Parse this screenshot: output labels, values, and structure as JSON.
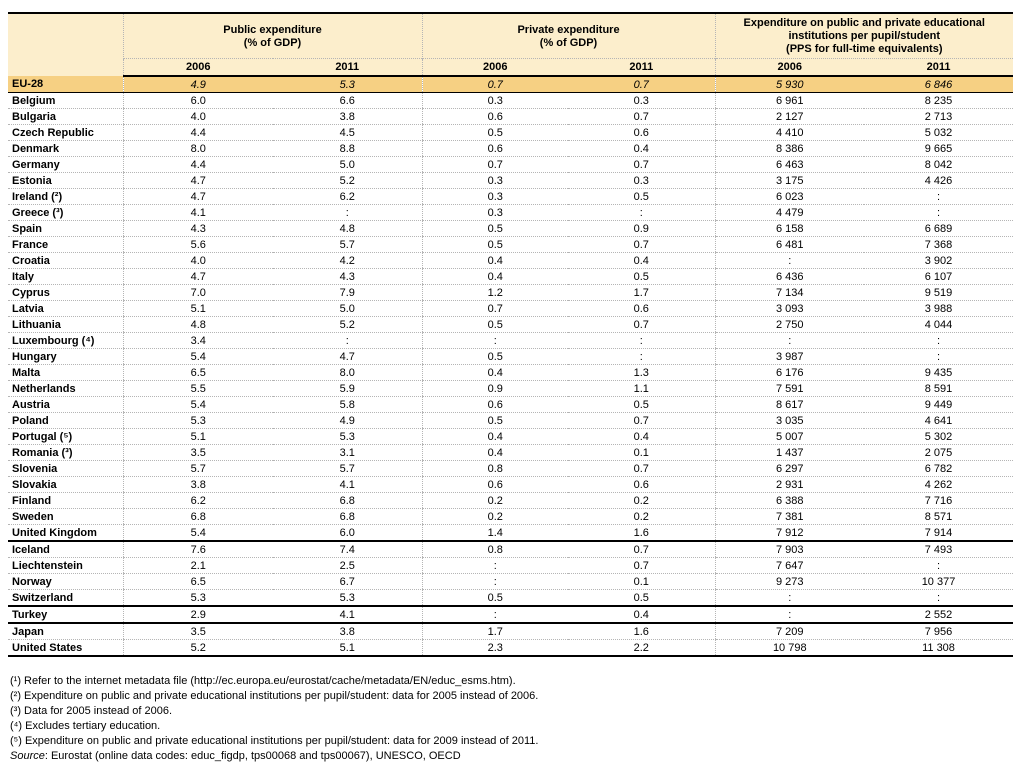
{
  "table": {
    "column_groups": [
      {
        "lines": [
          "Public expenditure",
          "(% of GDP)",
          ""
        ]
      },
      {
        "lines": [
          "Private expenditure",
          "(% of GDP)",
          ""
        ]
      },
      {
        "lines": [
          "Expenditure on public and private educational",
          "institutions per pupil/student",
          "(PPS for full-time equivalents)"
        ]
      }
    ],
    "year_headers": [
      "2006",
      "2011",
      "2006",
      "2011",
      "2006",
      "2011"
    ],
    "missing_value_symbol": ":",
    "colors": {
      "header_bg": "#FCEECC",
      "eu_row_bg": "#F6D083",
      "grid_dotted": "#B5B5B5",
      "section_border": "#000000"
    },
    "rows": [
      {
        "label": "EU-28",
        "style": "eu",
        "values": [
          "4.9",
          "5.3",
          "0.7",
          "0.7",
          "5 930",
          "6 846"
        ]
      },
      {
        "label": "Belgium",
        "values": [
          "6.0",
          "6.6",
          "0.3",
          "0.3",
          "6 961",
          "8 235"
        ]
      },
      {
        "label": "Bulgaria",
        "values": [
          "4.0",
          "3.8",
          "0.6",
          "0.7",
          "2 127",
          "2 713"
        ]
      },
      {
        "label": "Czech Republic",
        "values": [
          "4.4",
          "4.5",
          "0.5",
          "0.6",
          "4 410",
          "5 032"
        ]
      },
      {
        "label": "Denmark",
        "values": [
          "8.0",
          "8.8",
          "0.6",
          "0.4",
          "8 386",
          "9 665"
        ]
      },
      {
        "label": "Germany",
        "values": [
          "4.4",
          "5.0",
          "0.7",
          "0.7",
          "6 463",
          "8 042"
        ]
      },
      {
        "label": "Estonia",
        "values": [
          "4.7",
          "5.2",
          "0.3",
          "0.3",
          "3 175",
          "4 426"
        ]
      },
      {
        "label": "Ireland (²)",
        "values": [
          "4.7",
          "6.2",
          "0.3",
          "0.5",
          "6 023",
          ":"
        ]
      },
      {
        "label": "Greece (³)",
        "values": [
          "4.1",
          ":",
          "0.3",
          ":",
          "4 479",
          ":"
        ]
      },
      {
        "label": "Spain",
        "values": [
          "4.3",
          "4.8",
          "0.5",
          "0.9",
          "6 158",
          "6 689"
        ]
      },
      {
        "label": "France",
        "values": [
          "5.6",
          "5.7",
          "0.5",
          "0.7",
          "6 481",
          "7 368"
        ]
      },
      {
        "label": "Croatia",
        "values": [
          "4.0",
          "4.2",
          "0.4",
          "0.4",
          ":",
          "3 902"
        ]
      },
      {
        "label": "Italy",
        "values": [
          "4.7",
          "4.3",
          "0.4",
          "0.5",
          "6 436",
          "6 107"
        ]
      },
      {
        "label": "Cyprus",
        "values": [
          "7.0",
          "7.9",
          "1.2",
          "1.7",
          "7 134",
          "9 519"
        ]
      },
      {
        "label": "Latvia",
        "values": [
          "5.1",
          "5.0",
          "0.7",
          "0.6",
          "3 093",
          "3 988"
        ]
      },
      {
        "label": "Lithuania",
        "values": [
          "4.8",
          "5.2",
          "0.5",
          "0.7",
          "2 750",
          "4 044"
        ]
      },
      {
        "label": "Luxembourg (⁴)",
        "values": [
          "3.4",
          ":",
          ":",
          ":",
          ":",
          ":"
        ]
      },
      {
        "label": "Hungary",
        "values": [
          "5.4",
          "4.7",
          "0.5",
          ":",
          "3 987",
          ":"
        ]
      },
      {
        "label": "Malta",
        "values": [
          "6.5",
          "8.0",
          "0.4",
          "1.3",
          "6 176",
          "9 435"
        ]
      },
      {
        "label": "Netherlands",
        "values": [
          "5.5",
          "5.9",
          "0.9",
          "1.1",
          "7 591",
          "8 591"
        ]
      },
      {
        "label": "Austria",
        "values": [
          "5.4",
          "5.8",
          "0.6",
          "0.5",
          "8 617",
          "9 449"
        ]
      },
      {
        "label": "Poland",
        "values": [
          "5.3",
          "4.9",
          "0.5",
          "0.7",
          "3 035",
          "4 641"
        ]
      },
      {
        "label": "Portugal (⁵)",
        "values": [
          "5.1",
          "5.3",
          "0.4",
          "0.4",
          "5 007",
          "5 302"
        ]
      },
      {
        "label": "Romania (³)",
        "values": [
          "3.5",
          "3.1",
          "0.4",
          "0.1",
          "1 437",
          "2 075"
        ]
      },
      {
        "label": "Slovenia",
        "values": [
          "5.7",
          "5.7",
          "0.8",
          "0.7",
          "6 297",
          "6 782"
        ]
      },
      {
        "label": "Slovakia",
        "values": [
          "3.8",
          "4.1",
          "0.6",
          "0.6",
          "2 931",
          "4 262"
        ]
      },
      {
        "label": "Finland",
        "values": [
          "6.2",
          "6.8",
          "0.2",
          "0.2",
          "6 388",
          "7 716"
        ]
      },
      {
        "label": "Sweden",
        "values": [
          "6.8",
          "6.8",
          "0.2",
          "0.2",
          "7 381",
          "8 571"
        ]
      },
      {
        "label": "United Kingdom",
        "values": [
          "5.4",
          "6.0",
          "1.4",
          "1.6",
          "7 912",
          "7 914"
        ]
      },
      {
        "label": "Iceland",
        "sep_before": true,
        "values": [
          "7.6",
          "7.4",
          "0.8",
          "0.7",
          "7 903",
          "7 493"
        ]
      },
      {
        "label": "Liechtenstein",
        "values": [
          "2.1",
          "2.5",
          ":",
          "0.7",
          "7 647",
          ":"
        ]
      },
      {
        "label": "Norway",
        "values": [
          "6.5",
          "6.7",
          ":",
          "0.1",
          "9 273",
          "10 377"
        ]
      },
      {
        "label": "Switzerland",
        "values": [
          "5.3",
          "5.3",
          "0.5",
          "0.5",
          ":",
          ":"
        ]
      },
      {
        "label": "Turkey",
        "sep_before": true,
        "values": [
          "2.9",
          "4.1",
          ":",
          "0.4",
          ":",
          "2 552"
        ]
      },
      {
        "label": "Japan",
        "sep_before": true,
        "values": [
          "3.5",
          "3.8",
          "1.7",
          "1.6",
          "7 209",
          "7 956"
        ]
      },
      {
        "label": "United States",
        "values": [
          "5.2",
          "5.1",
          "2.3",
          "2.2",
          "10 798",
          "11 308"
        ]
      }
    ],
    "footnotes": [
      "(¹) Refer to the internet metadata file (http://ec.europa.eu/eurostat/cache/metadata/EN/educ_esms.htm).",
      "(²) Expenditure on public and private educational institutions per pupil/student: data for 2005 instead of 2006.",
      "(³) Data for 2005 instead of 2006.",
      "(⁴) Excludes tertiary education.",
      "(⁵) Expenditure on public and private educational institutions per pupil/student: data for 2009 instead of 2011."
    ],
    "source": {
      "label": "Source",
      "text": ":  Eurostat (online data codes: educ_figdp, tps00068 and tps00067), UNESCO, OECD"
    }
  }
}
